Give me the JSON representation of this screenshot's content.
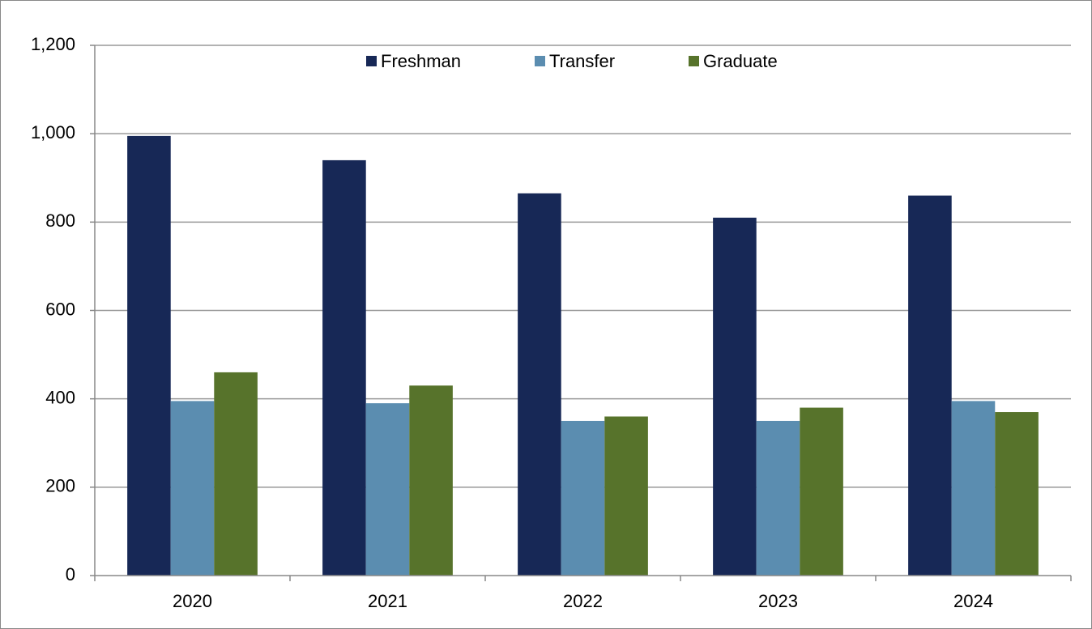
{
  "chart_data": {
    "type": "bar",
    "categories": [
      "2020",
      "2021",
      "2022",
      "2023",
      "2024"
    ],
    "series": [
      {
        "name": "Freshman",
        "color": "#172856",
        "values": [
          995,
          940,
          865,
          810,
          860
        ]
      },
      {
        "name": "Transfer",
        "color": "#5b8db0",
        "values": [
          395,
          390,
          350,
          350,
          395
        ]
      },
      {
        "name": "Graduate",
        "color": "#57732b",
        "values": [
          460,
          430,
          360,
          380,
          370
        ]
      }
    ],
    "ylim": [
      0,
      1200
    ],
    "yticks": [
      0,
      200,
      400,
      600,
      800,
      {
        "value": 1000,
        "label": "1,000"
      },
      {
        "value": 1200,
        "label": "1,200"
      }
    ],
    "grid": true,
    "legend": "top"
  }
}
